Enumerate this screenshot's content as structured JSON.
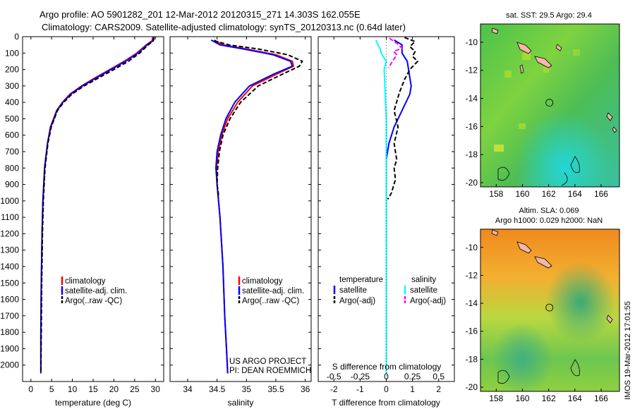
{
  "header": {
    "line1": "Argo profile: AO 5901282_201 12-Mar-2012 20120315_271 14.303S 162.055E",
    "line2": "Climatology: CARS2009. Satellite-adjusted climatology: synTS_20120313.nc (0.64d later)"
  },
  "stamp": "IMOS 19-Mar-2012 17:01:55",
  "project": {
    "line1": "US ARGO PROJECT",
    "line2": "PI: DEAN ROEMMICH"
  },
  "colors": {
    "climatology": "#ff0000",
    "satellite": "#0000ff",
    "argo": "#000000",
    "sal_satellite": "#00ffff",
    "sal_argo": "#ff00ff"
  },
  "chart_data": [
    {
      "type": "line",
      "xlabel": "temperature (deg C)",
      "xlim": [
        -2,
        32
      ],
      "ylim": [
        2100,
        0
      ],
      "xticks": [
        0,
        5,
        10,
        15,
        20,
        25,
        30
      ],
      "yticks": [
        0,
        100,
        200,
        300,
        400,
        500,
        600,
        700,
        800,
        900,
        1000,
        1100,
        1200,
        1300,
        1400,
        1500,
        1600,
        1700,
        1800,
        1900,
        2000
      ],
      "legend": [
        "climatology",
        "satellite-adj. clim.",
        "Argo(..raw -QC)"
      ],
      "series": [
        {
          "name": "climatology",
          "x": [
            29.4,
            29.2,
            27.8,
            25.5,
            22.5,
            19.0,
            15.5,
            12.2,
            9.4,
            7.6,
            6.2,
            4.7,
            4.0,
            3.3,
            2.9,
            2.7,
            2.5,
            2.4,
            2.4
          ],
          "y": [
            0,
            25,
            50,
            100,
            150,
            200,
            250,
            300,
            350,
            400,
            450,
            550,
            650,
            800,
            1000,
            1200,
            1500,
            1800,
            2050
          ]
        },
        {
          "name": "satellite-adj. clim.",
          "x": [
            29.6,
            29.4,
            28.0,
            25.8,
            22.8,
            19.3,
            15.8,
            12.4,
            9.6,
            7.7,
            6.3,
            4.8,
            4.0,
            3.3,
            2.9,
            2.7,
            2.5,
            2.4,
            2.4
          ],
          "y": [
            0,
            25,
            50,
            100,
            150,
            200,
            250,
            300,
            350,
            400,
            450,
            550,
            650,
            800,
            1000,
            1200,
            1500,
            1800,
            2050
          ]
        },
        {
          "name": "Argo(..raw -QC)",
          "x": [
            29.7,
            29.5,
            28.3,
            26.2,
            23.5,
            20.0,
            16.4,
            12.8,
            9.9,
            7.9,
            6.4,
            4.9,
            4.1,
            3.4,
            3.0,
            2.8,
            2.6,
            2.5,
            2.4
          ],
          "y": [
            5,
            25,
            50,
            100,
            150,
            200,
            250,
            300,
            350,
            400,
            450,
            550,
            650,
            800,
            1000,
            1200,
            1500,
            1800,
            2050
          ]
        }
      ]
    },
    {
      "type": "line",
      "xlabel": "salinity",
      "xlim": [
        33.7,
        36.1
      ],
      "ylim": [
        2100,
        0
      ],
      "xticks": [
        34,
        34.5,
        35,
        35.5,
        36
      ],
      "legend": [
        "climatology",
        "satellite-adj. clim.",
        "Argo(..raw -QC)"
      ],
      "series": [
        {
          "name": "climatology",
          "x": [
            34.45,
            34.6,
            35.0,
            35.5,
            35.78,
            35.8,
            35.5,
            35.1,
            34.85,
            34.68,
            34.58,
            34.52,
            34.49,
            34.5,
            34.55,
            34.6,
            34.63,
            34.66,
            34.68
          ],
          "y": [
            20,
            50,
            75,
            110,
            150,
            180,
            230,
            300,
            400,
            500,
            600,
            700,
            800,
            900,
            1100,
            1400,
            1700,
            1900,
            2050
          ]
        },
        {
          "name": "satellite-adj. clim.",
          "x": [
            34.4,
            34.55,
            34.95,
            35.45,
            35.75,
            35.78,
            35.45,
            35.05,
            34.8,
            34.65,
            34.56,
            34.5,
            34.48,
            34.5,
            34.55,
            34.6,
            34.63,
            34.66,
            34.68
          ],
          "y": [
            20,
            50,
            75,
            110,
            150,
            180,
            230,
            300,
            400,
            500,
            600,
            700,
            800,
            900,
            1100,
            1400,
            1700,
            1900,
            2050
          ]
        },
        {
          "name": "Argo(..raw -QC)",
          "x": [
            34.45,
            34.7,
            35.2,
            35.7,
            35.95,
            35.9,
            35.6,
            35.2,
            34.9,
            34.72,
            34.6,
            34.54,
            34.51,
            34.5,
            34.53
          ],
          "y": [
            25,
            50,
            75,
            110,
            150,
            180,
            230,
            300,
            400,
            500,
            600,
            700,
            800,
            900,
            980
          ]
        }
      ]
    },
    {
      "type": "line",
      "xlabel": "T difference from climatology",
      "xlabel2": "S difference from climatology",
      "xlim": [
        -2.6,
        2.6
      ],
      "ylim": [
        2100,
        0
      ],
      "xticks": [
        -2,
        -1,
        0,
        1,
        2
      ],
      "xticks2": [
        -0.5,
        -0.25,
        0,
        0.25,
        0.5
      ],
      "legend": {
        "temperature_title": "temperature",
        "salinity_title": "salinity",
        "temperature": [
          "satellite",
          "Argo(-adj)"
        ],
        "salinity": [
          "satellite",
          "Argo(-adj)"
        ]
      },
      "series": [
        {
          "name": "temperature satellite",
          "x": [
            0.3,
            0.6,
            0.6,
            0.8,
            0.9,
            0.95,
            0.9,
            0.6,
            0.3,
            0.1,
            0,
            0,
            0,
            0,
            0
          ],
          "y": [
            20,
            50,
            100,
            150,
            250,
            300,
            350,
            450,
            550,
            650,
            750,
            900,
            1200,
            1600,
            2050
          ]
        },
        {
          "name": "temperature Argo(-adj)",
          "x": [
            0.7,
            1.1,
            0.9,
            1.1,
            1.0,
            1.2,
            0.9,
            0.7,
            0.5,
            0.3,
            0.45,
            0.3,
            0.4,
            0.3,
            0.35,
            0.2,
            0.1,
            0.05
          ],
          "y": [
            5,
            30,
            60,
            90,
            120,
            150,
            200,
            260,
            340,
            450,
            550,
            650,
            750,
            800,
            870,
            950,
            980,
            990
          ]
        },
        {
          "name": "salinity satellite",
          "x": [
            -0.1,
            -0.08,
            -0.06,
            -0.05,
            0.0,
            -0.02,
            0,
            0,
            0,
            0
          ],
          "y": [
            20,
            50,
            70,
            100,
            150,
            200,
            500,
            1000,
            1500,
            2050
          ]
        },
        {
          "name": "salinity Argo(-adj)",
          "x": [
            0.03,
            0.1,
            0.15,
            0.07,
            0.1,
            0.05,
            0.02
          ],
          "y": [
            10,
            40,
            70,
            90,
            110,
            160,
            190
          ]
        }
      ]
    },
    {
      "type": "heatmap",
      "title": "sat. SST: 29.5 Argo: 29.4",
      "xticks": [
        158,
        160,
        162,
        164,
        166
      ],
      "yticks": [
        -10,
        -12,
        -14,
        -16,
        -18,
        -20
      ],
      "xlim": [
        156.8,
        167.4
      ],
      "ylim": [
        -20.3,
        -8.7
      ],
      "marker": {
        "lon": 162.055,
        "lat": -14.303
      }
    },
    {
      "type": "heatmap",
      "title": "Altim. SLA: 0.069",
      "subtitle": "Argo h1000: 0.029 h2000: NaN",
      "xticks": [
        158,
        160,
        162,
        164,
        166
      ],
      "yticks": [
        -10,
        -12,
        -14,
        -16,
        -18,
        -20
      ],
      "xlim": [
        156.8,
        167.4
      ],
      "ylim": [
        -20.3,
        -8.7
      ],
      "marker": {
        "lon": 162.055,
        "lat": -14.303
      }
    }
  ]
}
